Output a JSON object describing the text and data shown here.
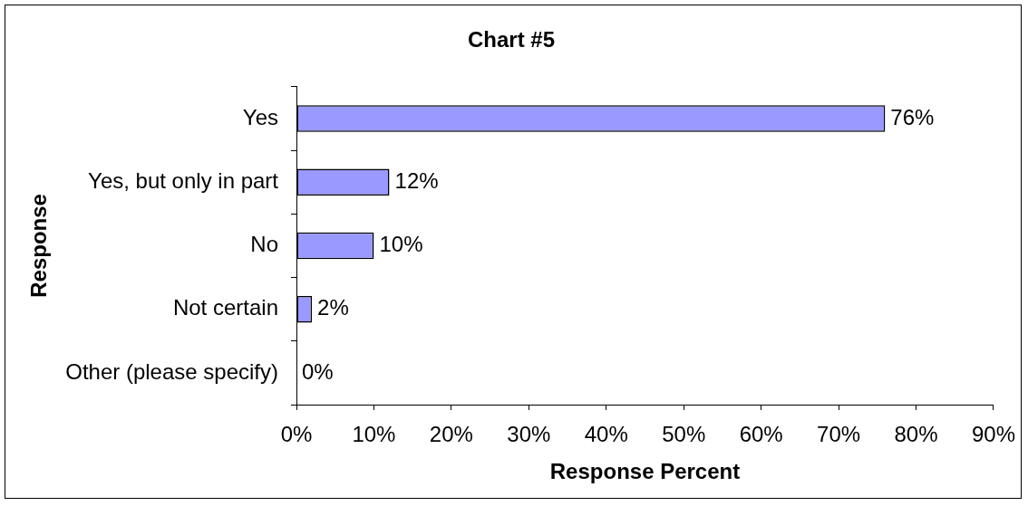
{
  "chart_data": {
    "type": "bar",
    "title": "Chart #5",
    "xlabel": "Response Percent",
    "ylabel": "Response",
    "orientation": "horizontal",
    "categories": [
      "Yes",
      "Yes, but only in part",
      "No",
      "Not certain",
      "Other (please specify)"
    ],
    "values": [
      76,
      12,
      10,
      2,
      0
    ],
    "color": "#9999ff",
    "value_labels": [
      "76%",
      "12%",
      "10%",
      "2%",
      "0%"
    ],
    "xlim": [
      0,
      90
    ],
    "xticks": [
      {
        "value": 0,
        "label": "0%"
      },
      {
        "value": 10,
        "label": "10%"
      },
      {
        "value": 20,
        "label": "20%"
      },
      {
        "value": 30,
        "label": "30%"
      },
      {
        "value": 40,
        "label": "40%"
      },
      {
        "value": 50,
        "label": "50%"
      },
      {
        "value": 60,
        "label": "60%"
      },
      {
        "value": 70,
        "label": "70%"
      },
      {
        "value": 80,
        "label": "80%"
      },
      {
        "value": 90,
        "label": "90%"
      }
    ]
  }
}
